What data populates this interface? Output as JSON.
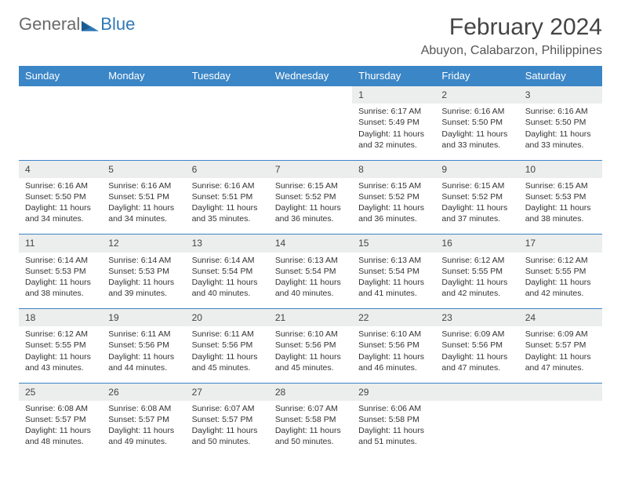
{
  "logo": {
    "general": "General",
    "blue": "Blue"
  },
  "title": "February 2024",
  "location": "Abuyon, Calabarzon, Philippines",
  "dayHeaders": [
    "Sunday",
    "Monday",
    "Tuesday",
    "Wednesday",
    "Thursday",
    "Friday",
    "Saturday"
  ],
  "colors": {
    "headerBg": "#3b86c6",
    "dayNumBg": "#eceded",
    "border": "#3b86c6",
    "logoBlue": "#2f78b7",
    "logoGray": "#6a6a6a"
  },
  "weeks": [
    [
      null,
      null,
      null,
      null,
      {
        "n": "1",
        "sr": "Sunrise: 6:17 AM",
        "ss": "Sunset: 5:49 PM",
        "dl": "Daylight: 11 hours and 32 minutes."
      },
      {
        "n": "2",
        "sr": "Sunrise: 6:16 AM",
        "ss": "Sunset: 5:50 PM",
        "dl": "Daylight: 11 hours and 33 minutes."
      },
      {
        "n": "3",
        "sr": "Sunrise: 6:16 AM",
        "ss": "Sunset: 5:50 PM",
        "dl": "Daylight: 11 hours and 33 minutes."
      }
    ],
    [
      {
        "n": "4",
        "sr": "Sunrise: 6:16 AM",
        "ss": "Sunset: 5:50 PM",
        "dl": "Daylight: 11 hours and 34 minutes."
      },
      {
        "n": "5",
        "sr": "Sunrise: 6:16 AM",
        "ss": "Sunset: 5:51 PM",
        "dl": "Daylight: 11 hours and 34 minutes."
      },
      {
        "n": "6",
        "sr": "Sunrise: 6:16 AM",
        "ss": "Sunset: 5:51 PM",
        "dl": "Daylight: 11 hours and 35 minutes."
      },
      {
        "n": "7",
        "sr": "Sunrise: 6:15 AM",
        "ss": "Sunset: 5:52 PM",
        "dl": "Daylight: 11 hours and 36 minutes."
      },
      {
        "n": "8",
        "sr": "Sunrise: 6:15 AM",
        "ss": "Sunset: 5:52 PM",
        "dl": "Daylight: 11 hours and 36 minutes."
      },
      {
        "n": "9",
        "sr": "Sunrise: 6:15 AM",
        "ss": "Sunset: 5:52 PM",
        "dl": "Daylight: 11 hours and 37 minutes."
      },
      {
        "n": "10",
        "sr": "Sunrise: 6:15 AM",
        "ss": "Sunset: 5:53 PM",
        "dl": "Daylight: 11 hours and 38 minutes."
      }
    ],
    [
      {
        "n": "11",
        "sr": "Sunrise: 6:14 AM",
        "ss": "Sunset: 5:53 PM",
        "dl": "Daylight: 11 hours and 38 minutes."
      },
      {
        "n": "12",
        "sr": "Sunrise: 6:14 AM",
        "ss": "Sunset: 5:53 PM",
        "dl": "Daylight: 11 hours and 39 minutes."
      },
      {
        "n": "13",
        "sr": "Sunrise: 6:14 AM",
        "ss": "Sunset: 5:54 PM",
        "dl": "Daylight: 11 hours and 40 minutes."
      },
      {
        "n": "14",
        "sr": "Sunrise: 6:13 AM",
        "ss": "Sunset: 5:54 PM",
        "dl": "Daylight: 11 hours and 40 minutes."
      },
      {
        "n": "15",
        "sr": "Sunrise: 6:13 AM",
        "ss": "Sunset: 5:54 PM",
        "dl": "Daylight: 11 hours and 41 minutes."
      },
      {
        "n": "16",
        "sr": "Sunrise: 6:12 AM",
        "ss": "Sunset: 5:55 PM",
        "dl": "Daylight: 11 hours and 42 minutes."
      },
      {
        "n": "17",
        "sr": "Sunrise: 6:12 AM",
        "ss": "Sunset: 5:55 PM",
        "dl": "Daylight: 11 hours and 42 minutes."
      }
    ],
    [
      {
        "n": "18",
        "sr": "Sunrise: 6:12 AM",
        "ss": "Sunset: 5:55 PM",
        "dl": "Daylight: 11 hours and 43 minutes."
      },
      {
        "n": "19",
        "sr": "Sunrise: 6:11 AM",
        "ss": "Sunset: 5:56 PM",
        "dl": "Daylight: 11 hours and 44 minutes."
      },
      {
        "n": "20",
        "sr": "Sunrise: 6:11 AM",
        "ss": "Sunset: 5:56 PM",
        "dl": "Daylight: 11 hours and 45 minutes."
      },
      {
        "n": "21",
        "sr": "Sunrise: 6:10 AM",
        "ss": "Sunset: 5:56 PM",
        "dl": "Daylight: 11 hours and 45 minutes."
      },
      {
        "n": "22",
        "sr": "Sunrise: 6:10 AM",
        "ss": "Sunset: 5:56 PM",
        "dl": "Daylight: 11 hours and 46 minutes."
      },
      {
        "n": "23",
        "sr": "Sunrise: 6:09 AM",
        "ss": "Sunset: 5:56 PM",
        "dl": "Daylight: 11 hours and 47 minutes."
      },
      {
        "n": "24",
        "sr": "Sunrise: 6:09 AM",
        "ss": "Sunset: 5:57 PM",
        "dl": "Daylight: 11 hours and 47 minutes."
      }
    ],
    [
      {
        "n": "25",
        "sr": "Sunrise: 6:08 AM",
        "ss": "Sunset: 5:57 PM",
        "dl": "Daylight: 11 hours and 48 minutes."
      },
      {
        "n": "26",
        "sr": "Sunrise: 6:08 AM",
        "ss": "Sunset: 5:57 PM",
        "dl": "Daylight: 11 hours and 49 minutes."
      },
      {
        "n": "27",
        "sr": "Sunrise: 6:07 AM",
        "ss": "Sunset: 5:57 PM",
        "dl": "Daylight: 11 hours and 50 minutes."
      },
      {
        "n": "28",
        "sr": "Sunrise: 6:07 AM",
        "ss": "Sunset: 5:58 PM",
        "dl": "Daylight: 11 hours and 50 minutes."
      },
      {
        "n": "29",
        "sr": "Sunrise: 6:06 AM",
        "ss": "Sunset: 5:58 PM",
        "dl": "Daylight: 11 hours and 51 minutes."
      },
      null,
      null
    ]
  ]
}
